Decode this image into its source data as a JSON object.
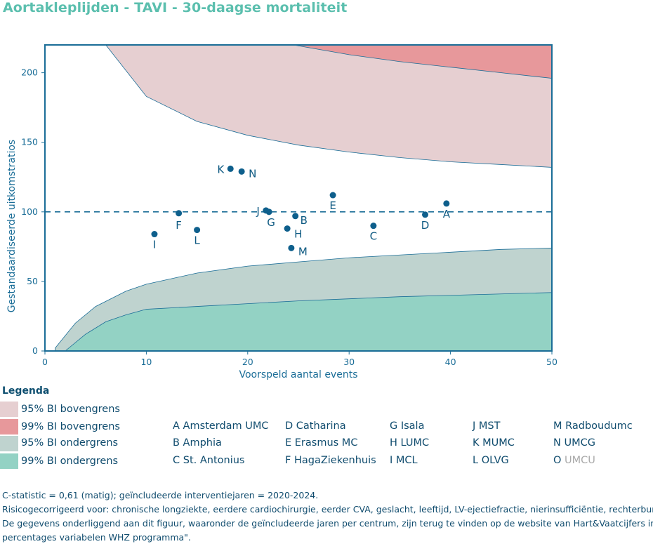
{
  "title": "Aortakleplijden - TAVI - 30-daagse mortaliteit",
  "chart_data": {
    "type": "scatter",
    "title": "Aortakleplijden - TAVI - 30-daagse mortaliteit",
    "xlabel": "Voorspeld aantal events",
    "ylabel": "Gestandaardiseerde uitkomstratios",
    "xlim": [
      0,
      50
    ],
    "ylim": [
      0,
      220
    ],
    "xticks": [
      "0",
      "10",
      "20",
      "30",
      "40",
      "50"
    ],
    "yticks": [
      "0",
      "50",
      "100",
      "150",
      "200"
    ],
    "reference_line": 100,
    "points": [
      {
        "label": "A",
        "x": 39.6,
        "y": 106
      },
      {
        "label": "B",
        "x": 24.7,
        "y": 97
      },
      {
        "label": "C",
        "x": 32.4,
        "y": 90
      },
      {
        "label": "D",
        "x": 37.5,
        "y": 98
      },
      {
        "label": "E",
        "x": 28.4,
        "y": 112
      },
      {
        "label": "F",
        "x": 13.2,
        "y": 99
      },
      {
        "label": "G",
        "x": 22.1,
        "y": 100
      },
      {
        "label": "H",
        "x": 23.9,
        "y": 88
      },
      {
        "label": "I",
        "x": 10.8,
        "y": 84
      },
      {
        "label": "J",
        "x": 21.8,
        "y": 101
      },
      {
        "label": "K",
        "x": 18.3,
        "y": 131
      },
      {
        "label": "L",
        "x": 15.0,
        "y": 87
      },
      {
        "label": "M",
        "x": 24.3,
        "y": 74
      },
      {
        "label": "N",
        "x": 19.4,
        "y": 129
      }
    ],
    "bands": {
      "upper95": [
        [
          6,
          220
        ],
        [
          10,
          183
        ],
        [
          15,
          165
        ],
        [
          20,
          155
        ],
        [
          25,
          148
        ],
        [
          30,
          143
        ],
        [
          35,
          139
        ],
        [
          40,
          136
        ],
        [
          45,
          134
        ],
        [
          50,
          132
        ]
      ],
      "upper99": [
        [
          24.5,
          220
        ],
        [
          30,
          213
        ],
        [
          35,
          208
        ],
        [
          40,
          204
        ],
        [
          45,
          200
        ],
        [
          50,
          196
        ]
      ],
      "lower95": [
        [
          1,
          2
        ],
        [
          3,
          20
        ],
        [
          5,
          32
        ],
        [
          8,
          43
        ],
        [
          10,
          48
        ],
        [
          15,
          56
        ],
        [
          20,
          61
        ],
        [
          25,
          64
        ],
        [
          30,
          67
        ],
        [
          35,
          69
        ],
        [
          40,
          71
        ],
        [
          45,
          73
        ],
        [
          50,
          74
        ]
      ],
      "lower99": [
        [
          2,
          0
        ],
        [
          4,
          12
        ],
        [
          6,
          21
        ],
        [
          8,
          26
        ],
        [
          10,
          30
        ],
        [
          15,
          32
        ],
        [
          20,
          34
        ],
        [
          25,
          36
        ],
        [
          30,
          37.5
        ],
        [
          35,
          39
        ],
        [
          40,
          40
        ],
        [
          45,
          41
        ],
        [
          50,
          42
        ]
      ]
    },
    "colors": {
      "upper95": "#e6cfd1",
      "upper99": "#e7989b",
      "lower95": "#bfd3cf",
      "lower99": "#93d2c4",
      "point": "#0e5f8c",
      "frame": "#1a6d97"
    }
  },
  "legend": {
    "title": "Legenda",
    "bands": [
      "95% BI bovengrens",
      "99% BI bovengrens",
      "95% BI ondergrens",
      "99% BI ondergrens"
    ],
    "centers": [
      [
        "A Amsterdam UMC",
        "B Amphia",
        "C St. Antonius"
      ],
      [
        "D Catharina",
        "E Erasmus MC",
        "F HagaZiekenhuis"
      ],
      [
        "G Isala",
        "H LUMC",
        "I MCL"
      ],
      [
        "J MST",
        "K MUMC",
        "L OLVG"
      ],
      [
        "M Radboudumc",
        "N UMCG"
      ]
    ],
    "o_letter": "O",
    "o_name": "UMCU"
  },
  "footer": {
    "line1": "C-statistic =  0,61 (matig); geïncludeerde interventiejaren = 2020-2024.",
    "line2": "Risicogecorrigeerd voor: chronische longziekte, eerdere cardiochirurgie, eerder CVA, geslacht, leeftijd, LV-ejectiefractie, nierinsufficiëntie, rechterbun",
    "line3": "De gegevens onderliggend aan dit figuur, waaronder de geïncludeerde jaren per centrum, zijn terug te vinden op de website van Hart&Vaatcijfers in d",
    "line4": "percentages variabelen WHZ programma\"."
  }
}
